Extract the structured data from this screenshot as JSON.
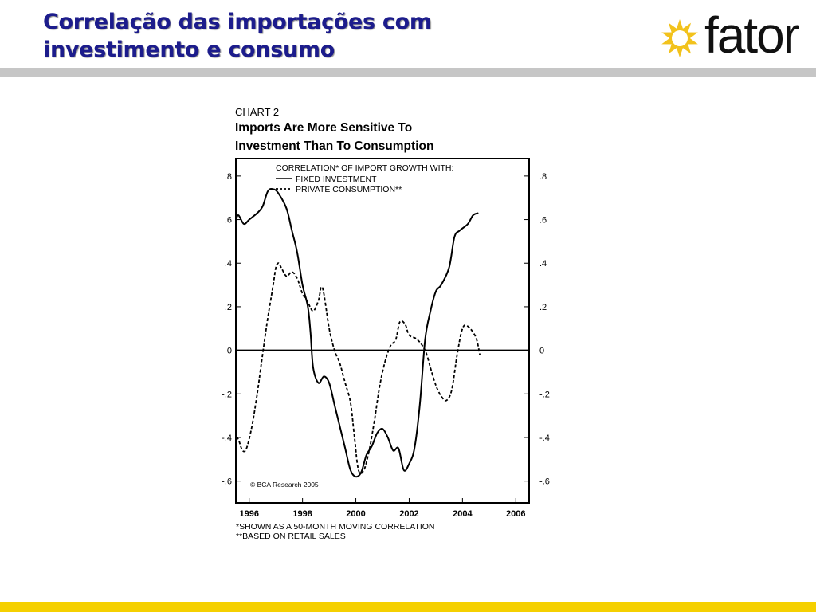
{
  "slide": {
    "title_line1": "Correlação das importações com",
    "title_line2": "investimento e consumo",
    "logo_text": "fator",
    "colors": {
      "title": "#1c1c8c",
      "footer_bar": "#f5d000",
      "header_rule": "#c6c6c6",
      "logo_sun": "#f2c21c"
    }
  },
  "figure": {
    "chart_number": "CHART 2",
    "title_line1": "Imports Are More Sensitive To",
    "title_line2": "Investment Than To Consumption",
    "copyright": "© BCA Research 2005",
    "footnote1": "*SHOWN AS A 50-MONTH MOVING CORRELATION",
    "footnote2": "**BASED ON RETAIL SALES"
  },
  "chart_data": {
    "type": "line",
    "legend_title": "CORRELATION* OF IMPORT GROWTH WITH:",
    "legend_placement": "top",
    "xlim": [
      1995.5,
      2006.5
    ],
    "ylim": [
      -0.7,
      0.88
    ],
    "x_ticks": [
      1996,
      1998,
      2000,
      2002,
      2004,
      2006
    ],
    "x_tick_labels": [
      "1996",
      "1998",
      "2000",
      "2002",
      "2004",
      "2006"
    ],
    "y_ticks": [
      0.8,
      0.6,
      0.4,
      0.2,
      0,
      -0.2,
      -0.4,
      -0.6
    ],
    "y_tick_labels": [
      ".8",
      ".6",
      ".4",
      ".2",
      "0",
      "-.2",
      "-.4",
      "-.6"
    ],
    "zero_line": true,
    "grid": false,
    "series": [
      {
        "name": "FIXED INVESTMENT",
        "style": "solid",
        "points": [
          [
            1995.5,
            0.6
          ],
          [
            1995.6,
            0.62
          ],
          [
            1995.8,
            0.58
          ],
          [
            1996.0,
            0.6
          ],
          [
            1996.3,
            0.63
          ],
          [
            1996.5,
            0.66
          ],
          [
            1996.7,
            0.73
          ],
          [
            1996.9,
            0.74
          ],
          [
            1997.1,
            0.72
          ],
          [
            1997.4,
            0.65
          ],
          [
            1997.6,
            0.55
          ],
          [
            1997.8,
            0.45
          ],
          [
            1998.0,
            0.3
          ],
          [
            1998.2,
            0.2
          ],
          [
            1998.3,
            0.08
          ],
          [
            1998.4,
            -0.08
          ],
          [
            1998.6,
            -0.15
          ],
          [
            1998.8,
            -0.12
          ],
          [
            1999.0,
            -0.15
          ],
          [
            1999.2,
            -0.25
          ],
          [
            1999.4,
            -0.35
          ],
          [
            1999.6,
            -0.45
          ],
          [
            1999.8,
            -0.55
          ],
          [
            2000.0,
            -0.58
          ],
          [
            2000.2,
            -0.56
          ],
          [
            2000.4,
            -0.48
          ],
          [
            2000.6,
            -0.44
          ],
          [
            2000.8,
            -0.38
          ],
          [
            2001.0,
            -0.36
          ],
          [
            2001.2,
            -0.4
          ],
          [
            2001.4,
            -0.46
          ],
          [
            2001.6,
            -0.45
          ],
          [
            2001.8,
            -0.55
          ],
          [
            2002.0,
            -0.52
          ],
          [
            2002.2,
            -0.45
          ],
          [
            2002.4,
            -0.25
          ],
          [
            2002.6,
            0.05
          ],
          [
            2002.8,
            0.18
          ],
          [
            2003.0,
            0.27
          ],
          [
            2003.2,
            0.3
          ],
          [
            2003.5,
            0.38
          ],
          [
            2003.7,
            0.52
          ],
          [
            2003.9,
            0.55
          ],
          [
            2004.2,
            0.58
          ],
          [
            2004.4,
            0.62
          ],
          [
            2004.6,
            0.63
          ]
        ]
      },
      {
        "name": "PRIVATE CONSUMPTION**",
        "style": "dashed",
        "points": [
          [
            1995.5,
            -0.4
          ],
          [
            1995.6,
            -0.41
          ],
          [
            1995.75,
            -0.46
          ],
          [
            1995.9,
            -0.45
          ],
          [
            1996.1,
            -0.35
          ],
          [
            1996.3,
            -0.2
          ],
          [
            1996.5,
            -0.02
          ],
          [
            1996.7,
            0.15
          ],
          [
            1996.9,
            0.3
          ],
          [
            1997.0,
            0.38
          ],
          [
            1997.1,
            0.4
          ],
          [
            1997.2,
            0.38
          ],
          [
            1997.4,
            0.34
          ],
          [
            1997.6,
            0.36
          ],
          [
            1997.8,
            0.33
          ],
          [
            1998.0,
            0.26
          ],
          [
            1998.2,
            0.22
          ],
          [
            1998.4,
            0.18
          ],
          [
            1998.6,
            0.23
          ],
          [
            1998.7,
            0.29
          ],
          [
            1998.8,
            0.26
          ],
          [
            1999.0,
            0.1
          ],
          [
            1999.2,
            0.0
          ],
          [
            1999.4,
            -0.06
          ],
          [
            1999.6,
            -0.15
          ],
          [
            1999.8,
            -0.24
          ],
          [
            1999.95,
            -0.4
          ],
          [
            2000.1,
            -0.55
          ],
          [
            2000.3,
            -0.55
          ],
          [
            2000.5,
            -0.46
          ],
          [
            2000.7,
            -0.32
          ],
          [
            2000.9,
            -0.16
          ],
          [
            2001.1,
            -0.05
          ],
          [
            2001.3,
            0.02
          ],
          [
            2001.5,
            0.05
          ],
          [
            2001.65,
            0.13
          ],
          [
            2001.85,
            0.12
          ],
          [
            2002.0,
            0.07
          ],
          [
            2002.3,
            0.05
          ],
          [
            2002.6,
            0.0
          ],
          [
            2002.8,
            -0.08
          ],
          [
            2003.0,
            -0.16
          ],
          [
            2003.2,
            -0.21
          ],
          [
            2003.4,
            -0.23
          ],
          [
            2003.6,
            -0.18
          ],
          [
            2003.8,
            -0.02
          ],
          [
            2004.0,
            0.1
          ],
          [
            2004.2,
            0.11
          ],
          [
            2004.5,
            0.06
          ],
          [
            2004.65,
            -0.02
          ]
        ]
      }
    ]
  }
}
